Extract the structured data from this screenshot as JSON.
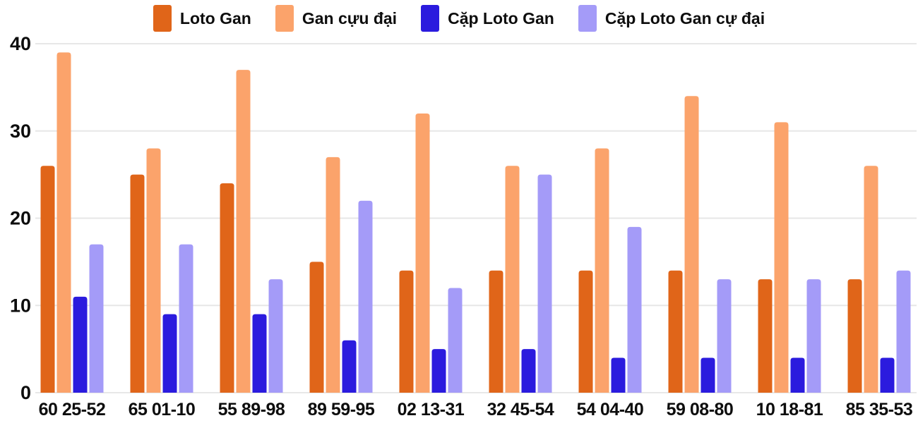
{
  "chart_data": {
    "type": "bar",
    "title": "",
    "xlabel": "",
    "ylabel": "",
    "categories": [
      "60 25-52",
      "65 01-10",
      "55 89-98",
      "89 59-95",
      "02 13-31",
      "32 45-54",
      "54 04-40",
      "59 08-80",
      "10 18-81",
      "85 35-53"
    ],
    "series": [
      {
        "name": "Loto Gan",
        "color": "#e06519",
        "values": [
          26,
          25,
          24,
          15,
          14,
          14,
          14,
          14,
          13,
          13
        ]
      },
      {
        "name": "Gan cựu đại",
        "color": "#fba36b",
        "values": [
          39,
          28,
          37,
          27,
          32,
          26,
          28,
          34,
          31,
          26
        ]
      },
      {
        "name": "Cặp Loto Gan",
        "color": "#2b1bde",
        "values": [
          11,
          9,
          9,
          6,
          5,
          5,
          4,
          4,
          4,
          4
        ]
      },
      {
        "name": "Cặp Loto Gan cự đại",
        "color": "#a49bf8",
        "values": [
          17,
          17,
          13,
          22,
          12,
          25,
          19,
          13,
          13,
          14
        ]
      }
    ],
    "ylim": [
      0,
      40
    ],
    "yticks": [
      0,
      10,
      20,
      30,
      40
    ],
    "grid": true,
    "legend_position": "top",
    "style": {
      "grid_color": "#e7e7e7",
      "text_color": "#0d0d0d",
      "background": "#ffffff"
    }
  }
}
